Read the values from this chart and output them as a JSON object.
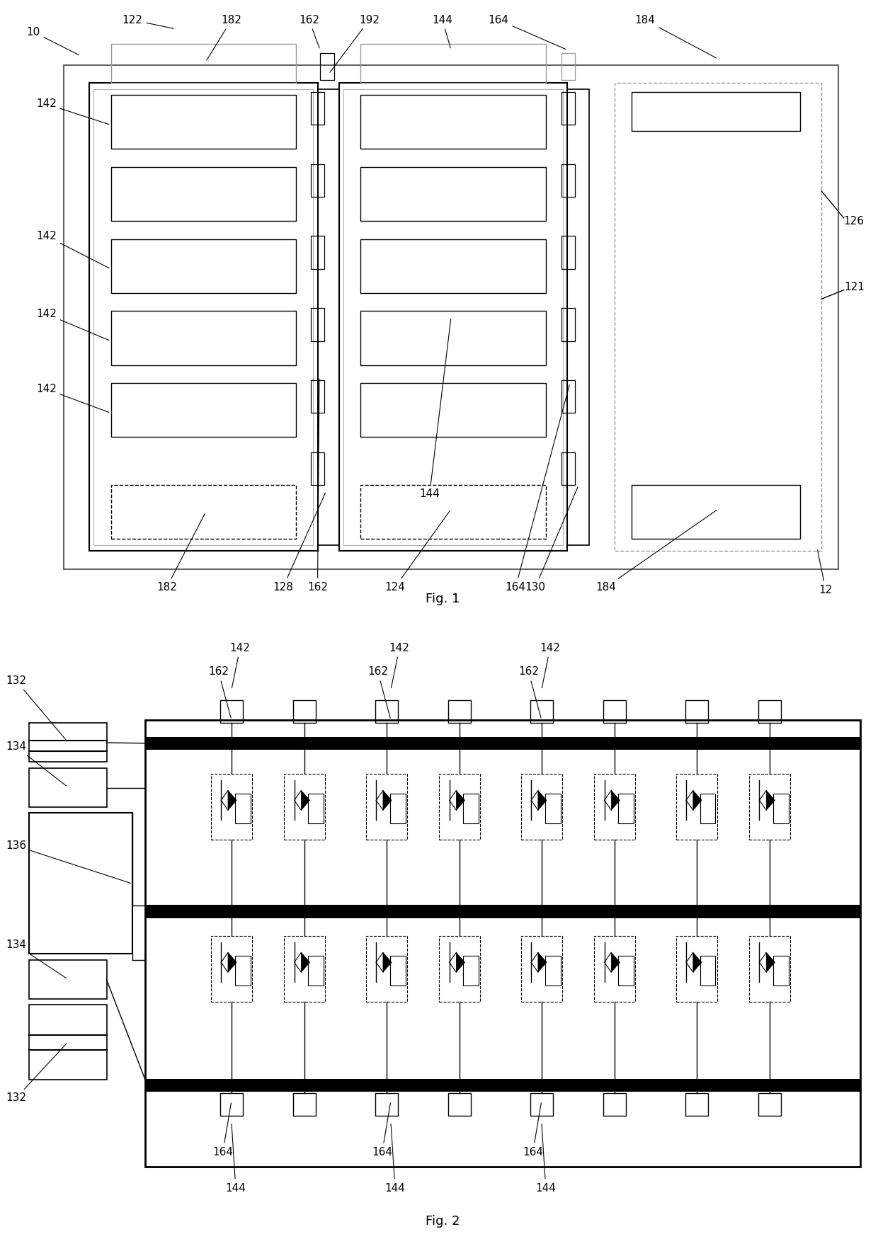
{
  "background": "#ffffff",
  "line_color": "#000000",
  "gray_color": "#888888",
  "font_size_label": 13,
  "font_size_ref": 11,
  "fig1_label": "Fig. 1",
  "fig2_label": "Fig. 2"
}
